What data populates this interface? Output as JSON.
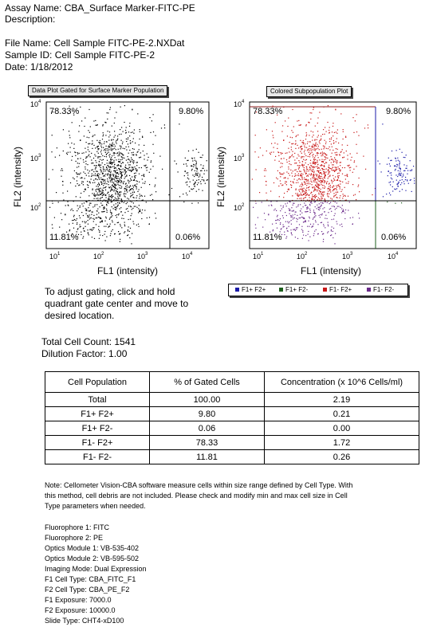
{
  "header": {
    "assay_name": "Assay Name: CBA_Surface Marker-FITC-PE",
    "description": "Description:",
    "file_name": "File Name: Cell Sample FITC-PE-2.NXDat",
    "sample_id": "Sample ID: Cell Sample FITC-PE-2",
    "date": "Date: 1/18/2012"
  },
  "plot_left": {
    "title": "Data Plot Gated for Surface Marker Population",
    "q_ul": "78.33%",
    "q_ur": "9.80%",
    "q_ll": "11.81%",
    "q_lr": "0.06%",
    "xlabel": "FL1 (intensity)",
    "ylabel": "FL2 (intensity)",
    "xticks": [
      "10",
      "10",
      "10",
      "10"
    ],
    "xexp": [
      "1",
      "2",
      "3",
      "4"
    ],
    "yticks": [
      "10",
      "10",
      "10"
    ],
    "yexp": [
      "4",
      "3",
      "2"
    ],
    "dot_color": "#000000"
  },
  "plot_right": {
    "title": "Colored Subpopulation Plot",
    "q_ul": "78.33%",
    "q_ur": "9.80%",
    "q_ll": "11.81%",
    "q_lr": "0.06%",
    "xlabel": "FL1 (intensity)",
    "ylabel": "FL2 (intensity)",
    "xticks": [
      "10",
      "10",
      "10",
      "10"
    ],
    "xexp": [
      "1",
      "2",
      "3",
      "4"
    ],
    "yticks": [
      "10",
      "10",
      "10"
    ],
    "yexp": [
      "4",
      "3",
      "2"
    ],
    "colors": {
      "f1p_f2p": "#1a1aa8",
      "f1p_f2n": "#1c5f1c",
      "f1n_f2p": "#c81818",
      "f1n_f2n": "#6a2a8a"
    }
  },
  "legend": {
    "items": [
      {
        "label": "F1+ F2+",
        "color": "#1a1aa8"
      },
      {
        "label": "F1+ F2-",
        "color": "#1c5f1c"
      },
      {
        "label": "F1- F2+",
        "color": "#c81818"
      },
      {
        "label": "F1- F2-",
        "color": "#6a2a8a"
      }
    ]
  },
  "instructions": {
    "line1": "To adjust gating, click and hold",
    "line2": "quadrant gate center and move to",
    "line3": "desired location."
  },
  "counts": {
    "total": "Total Cell Count: 1541",
    "dilution": "Dilution Factor: 1.00"
  },
  "table": {
    "headers": [
      "Cell Population",
      "% of Gated Cells",
      "Concentration (x 10^6 Cells/ml)"
    ],
    "rows": [
      [
        "Total",
        "100.00",
        "2.19"
      ],
      [
        "F1+ F2+",
        "9.80",
        "0.21"
      ],
      [
        "F1+ F2-",
        "0.06",
        "0.00"
      ],
      [
        "F1- F2+",
        "78.33",
        "1.72"
      ],
      [
        "F1- F2-",
        "11.81",
        "0.26"
      ]
    ]
  },
  "note": {
    "line1": "Note: Cellometer Vision-CBA software measure cells within size range defined by Cell Type.   With",
    "line2": "this method, cell debris are not included.  Please check and modify min and max cell size in Cell",
    "line3": "Type parameters when needed."
  },
  "params": [
    "Fluorophore 1: FITC",
    "Fluorophore 2: PE",
    "Optics Module 1: VB-535-402",
    "Optics Module 2: VB-595-502",
    "Imaging Mode: Dual Expression",
    "F1 Cell Type: CBA_FITC_F1",
    "F2 Cell Type: CBA_PE_F2",
    "F1 Exposure: 7000.0",
    "F2 Exposure: 10000.0",
    "Slide Type: CHT4-xD100"
  ]
}
